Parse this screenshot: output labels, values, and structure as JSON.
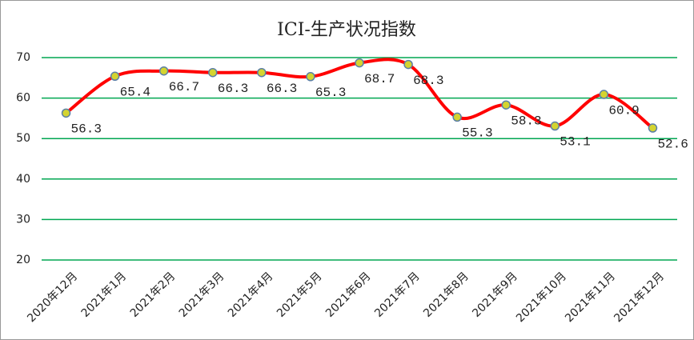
{
  "chart_data": {
    "type": "line",
    "title": "ICI-生产状况指数",
    "categories": [
      "2020年12月",
      "2021年1月",
      "2021年2月",
      "2021年3月",
      "2021年4月",
      "2021年5月",
      "2021年6月",
      "2021年7月",
      "2021年8月",
      "2021年9月",
      "2021年10月",
      "2021年11月",
      "2021年12月"
    ],
    "values": [
      56.3,
      65.4,
      66.7,
      66.3,
      66.3,
      65.3,
      68.7,
      68.3,
      55.3,
      58.3,
      53.1,
      60.9,
      52.6
    ],
    "color": "#ff0000",
    "marker_color": "#d4d430",
    "ylim": [
      20,
      70
    ],
    "yticks": [
      20,
      30,
      40,
      50,
      60,
      70
    ],
    "grid": true,
    "grid_color": "#00a651",
    "smooth": true
  }
}
